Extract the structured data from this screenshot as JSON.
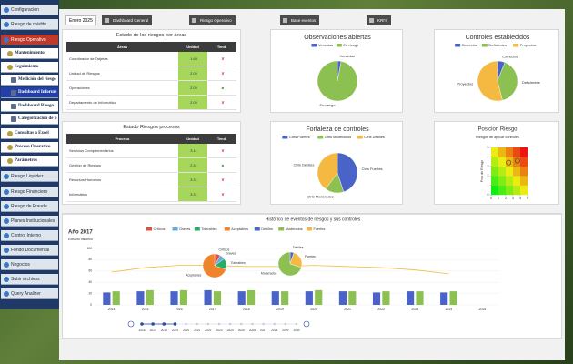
{
  "sidebar": {
    "items": [
      "Configuración",
      "Riesgo de crédito",
      "Riesgo Operativo",
      "Mantenimiento",
      "Seguimiento",
      "Medición del riesgo",
      "Dashboard Informe",
      "Dashboard Riesgo",
      "Categorización de p",
      "Consultas a Excel",
      "Proceso Operativo",
      "Parámetros",
      "Riesgo Liquidez",
      "Riesgo Financiero",
      "Riesgo de Fraude",
      "Planes Institucionales",
      "Control Interno",
      "Fondo Documental",
      "Negocios",
      "Subir archivos",
      "Query Analizer"
    ]
  },
  "toolbar": {
    "period": "Enero 2025",
    "buttons": [
      "Dashboard General",
      "Riesgo Operativo",
      "Base eventos",
      "KRI's"
    ]
  },
  "tables": [
    {
      "title": "Estado de los riesgos por áreas",
      "columns": [
        "Áreas",
        "Unidad",
        "Tend."
      ],
      "rows": [
        [
          "Coordinador de Tarjetas",
          "1.64",
          "✘"
        ],
        [
          "Unidad de Riesgos",
          "2.06",
          "✘"
        ],
        [
          "Operaciones",
          "2.06",
          "■"
        ],
        [
          "Departamento de Informática",
          "2.06",
          "✘"
        ]
      ]
    },
    {
      "title": "Estado Riesgos procesos",
      "columns": [
        "Proceso",
        "Unidad",
        "Tend."
      ],
      "rows": [
        [
          "Servicios Complementarios",
          "3.11",
          "✘"
        ],
        [
          "Gestión de Riesgos",
          "2.31",
          "■"
        ],
        [
          "Recursos Humanos",
          "3.31",
          "✘"
        ],
        [
          "Informática",
          "3.31",
          "✘"
        ]
      ]
    }
  ],
  "chart_data": [
    {
      "type": "pie",
      "title": "Observaciones abiertas",
      "categories": [
        "Vencidas",
        "En riesgo"
      ],
      "values": [
        3,
        97
      ],
      "colors": [
        "#4a63c8",
        "#8cc152"
      ]
    },
    {
      "type": "pie",
      "title": "Controles establecidos",
      "categories": [
        "Correctos",
        "Deficientes",
        "Proyectos"
      ],
      "values": [
        6,
        40,
        54
      ],
      "colors": [
        "#4a63c8",
        "#8cc152",
        "#f5b942"
      ]
    },
    {
      "type": "pie",
      "title": "Fortaleza de controles",
      "categories": [
        "Ctrls Fuertes",
        "Ctrls Moderados",
        "Ctrls Débiles"
      ],
      "values": [
        45,
        15,
        40
      ],
      "colors": [
        "#4a63c8",
        "#8cc152",
        "#f5b942"
      ]
    },
    {
      "type": "heatmap",
      "title": "Posicion Riesgo",
      "subtitle": "Riesgos de aplicar controles",
      "ylabel": "Prob de Riesgo",
      "x": [
        2.4,
        3.6
      ],
      "y": [
        3.4,
        3.6
      ],
      "xlim": [
        0,
        5
      ],
      "ylim": [
        0,
        5
      ],
      "xticks": [
        0,
        1,
        2,
        3,
        4,
        5
      ],
      "yticks": [
        0,
        1,
        2,
        3,
        4,
        5
      ]
    },
    {
      "type": "combo",
      "title": "Histórico de eventos de riesgos y sus controles",
      "subtitle": "Año 2017",
      "note": "Extracto histórico",
      "legend": [
        {
          "name": "Críticos",
          "color": "#e74c3c"
        },
        {
          "name": "Graves",
          "color": "#5dade2"
        },
        {
          "name": "Tolerables",
          "color": "#27ae60"
        },
        {
          "name": "Aceptables",
          "color": "#f0842c"
        },
        {
          "name": "Débiles",
          "color": "#4a63c8"
        },
        {
          "name": "Moderados",
          "color": "#8cc152"
        },
        {
          "name": "Fuertes",
          "color": "#f5b942"
        }
      ],
      "categories": [
        "2014",
        "2015",
        "2016",
        "2017",
        "2018",
        "2019",
        "2020",
        "2021",
        "2022",
        "2023",
        "2024",
        "2025"
      ],
      "series": [
        {
          "color": "#4a63c8",
          "values": [
            22,
            24,
            24,
            26,
            24,
            24,
            24,
            24,
            22,
            24,
            22,
            null
          ]
        },
        {
          "color": "#8cc152",
          "values": [
            24,
            26,
            26,
            24,
            26,
            24,
            26,
            24,
            24,
            24,
            24,
            null
          ]
        },
        {
          "type": "line",
          "color": "#f5b942",
          "values": [
            58,
            66,
            70,
            70,
            68,
            68,
            70,
            68,
            66,
            62,
            55,
            null
          ]
        }
      ],
      "ylim": [
        0,
        100
      ],
      "yticks": [
        0,
        20,
        40,
        60,
        80,
        100
      ],
      "pies": [
        {
          "categories": [
            "Críticos",
            "Graves",
            "Tolerables",
            "Aceptables"
          ],
          "values": [
            8,
            7,
            15,
            70
          ]
        },
        {
          "categories": [
            "Débiles",
            "Fuertes",
            "Moderados"
          ],
          "values": [
            5,
            25,
            70
          ]
        }
      ],
      "timeline": [
        "2016",
        "2017",
        "2018",
        "2019",
        "2020",
        "2021",
        "2022",
        "2023",
        "2024",
        "2025",
        "2026",
        "2027",
        "2028",
        "2029",
        "2030"
      ]
    }
  ]
}
